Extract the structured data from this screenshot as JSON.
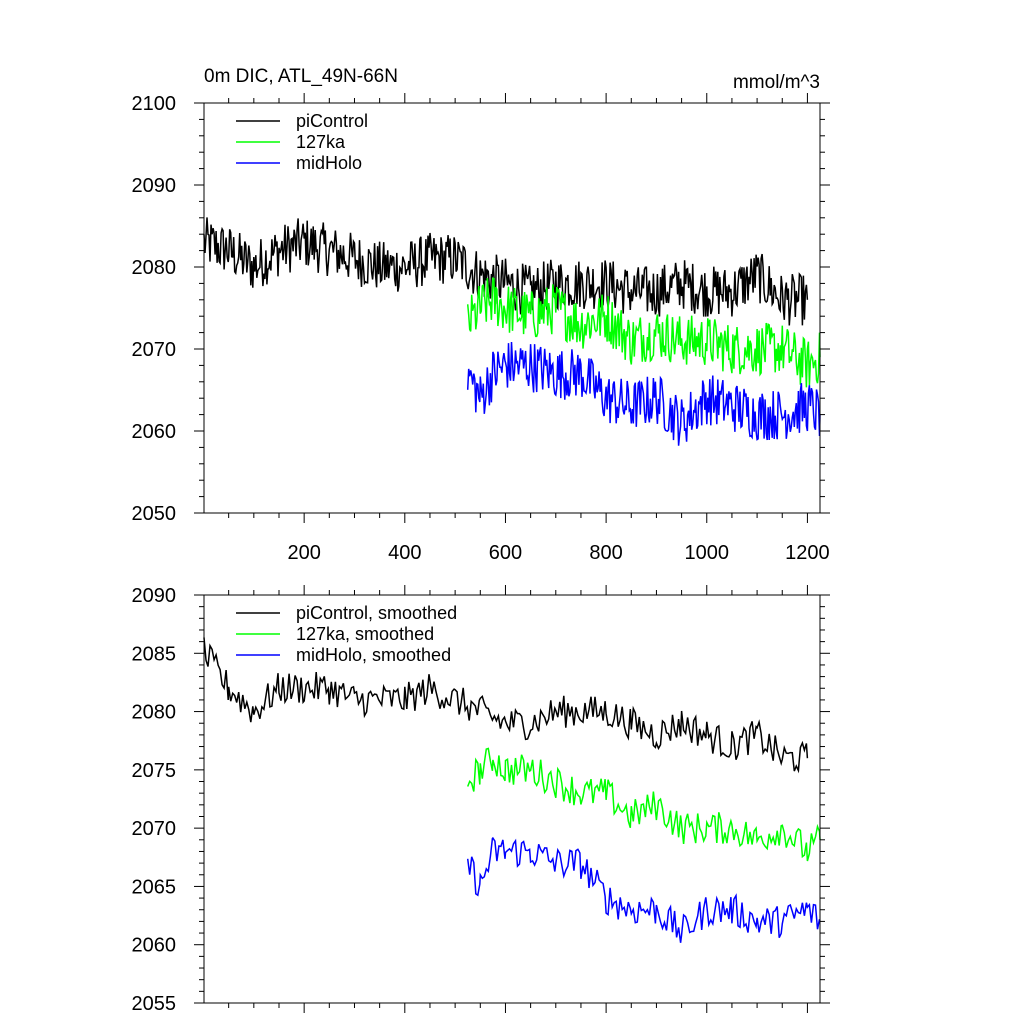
{
  "header": {
    "title": "0m DIC, ATL_49N-66N",
    "units": "mmol/m^3"
  },
  "colors": {
    "piControl": "#000000",
    "127ka": "#00ff00",
    "midHolo": "#0000ff"
  },
  "chart_data": [
    {
      "type": "line",
      "title": "0m DIC, ATL_49N-66N",
      "units_label": "mmol/m^3",
      "xlim": [
        1,
        1225
      ],
      "ylim": [
        2050,
        2100
      ],
      "x_ticks": [
        200,
        400,
        600,
        800,
        1000,
        1200
      ],
      "x_tick_labels": [
        "200",
        "400",
        "600",
        "800",
        "1000",
        "1200"
      ],
      "y_ticks": [
        2050,
        2060,
        2070,
        2080,
        2090,
        2100
      ],
      "y_tick_labels": [
        "2050",
        "2060",
        "2070",
        "2080",
        "2090",
        "2100"
      ],
      "legend_placement": "top-left",
      "series": [
        {
          "name": "piControl",
          "color": "#000000",
          "x": [
            1,
            50,
            100,
            150,
            200,
            250,
            300,
            350,
            400,
            450,
            500,
            550,
            600,
            650,
            700,
            750,
            800,
            850,
            900,
            950,
            1000,
            1050,
            1100,
            1150,
            1200
          ],
          "y": [
            2083,
            2082,
            2080,
            2082,
            2083,
            2082,
            2081,
            2080,
            2080,
            2081,
            2081,
            2079,
            2078,
            2077,
            2078,
            2078,
            2078,
            2077,
            2077,
            2078,
            2077,
            2077,
            2079,
            2076,
            2076
          ]
        },
        {
          "name": "127ka",
          "color": "#00ff00",
          "x": [
            525,
            550,
            575,
            600,
            650,
            700,
            750,
            800,
            850,
            900,
            950,
            1000,
            1050,
            1100,
            1150,
            1200,
            1225
          ],
          "y": [
            2073,
            2075,
            2076,
            2075,
            2074,
            2075,
            2073,
            2074,
            2071,
            2072,
            2071,
            2071,
            2070,
            2070,
            2070,
            2068,
            2069
          ]
        },
        {
          "name": "midHolo",
          "color": "#0000ff",
          "x": [
            525,
            550,
            575,
            600,
            650,
            700,
            750,
            800,
            850,
            900,
            950,
            1000,
            1050,
            1100,
            1150,
            1200,
            1225
          ],
          "y": [
            2067,
            2064,
            2067,
            2068,
            2068,
            2067,
            2067,
            2064,
            2063,
            2064,
            2061,
            2064,
            2063,
            2062,
            2062,
            2063,
            2062
          ]
        }
      ]
    },
    {
      "type": "line",
      "xlim": [
        1,
        1225
      ],
      "ylim": [
        2055,
        2090
      ],
      "x_ticks": [
        200,
        400,
        600,
        800,
        1000,
        1200
      ],
      "y_ticks": [
        2055,
        2060,
        2065,
        2070,
        2075,
        2080,
        2085,
        2090
      ],
      "y_tick_labels": [
        "2055",
        "2060",
        "2065",
        "2070",
        "2075",
        "2080",
        "2085",
        "2090"
      ],
      "legend_placement": "top-left",
      "series": [
        {
          "name": "piControl, smoothed",
          "color": "#000000",
          "x": [
            1,
            50,
            100,
            150,
            200,
            250,
            300,
            350,
            400,
            450,
            500,
            550,
            600,
            650,
            700,
            750,
            800,
            850,
            900,
            950,
            1000,
            1050,
            1100,
            1150,
            1200
          ],
          "y": [
            2085,
            2082,
            2080,
            2082,
            2082,
            2082,
            2081,
            2081,
            2081,
            2082,
            2081,
            2080,
            2079,
            2079,
            2080,
            2080,
            2080,
            2079,
            2078,
            2079,
            2078,
            2077,
            2078,
            2076,
            2076
          ]
        },
        {
          "name": "127ka, smoothed",
          "color": "#00ff00",
          "x": [
            525,
            550,
            575,
            600,
            650,
            700,
            750,
            800,
            850,
            900,
            950,
            1000,
            1050,
            1100,
            1150,
            1200,
            1225
          ],
          "y": [
            2074,
            2075,
            2076,
            2075,
            2075,
            2074,
            2073,
            2073,
            2071,
            2072,
            2070,
            2070,
            2070,
            2069,
            2070,
            2068,
            2069
          ]
        },
        {
          "name": "midHolo, smoothed",
          "color": "#0000ff",
          "x": [
            525,
            550,
            575,
            600,
            650,
            700,
            750,
            800,
            850,
            900,
            950,
            1000,
            1050,
            1100,
            1150,
            1200,
            1225
          ],
          "y": [
            2067,
            2065,
            2068,
            2068,
            2068,
            2067,
            2067,
            2064,
            2063,
            2063,
            2061,
            2063,
            2063,
            2062,
            2062,
            2063,
            2062
          ]
        }
      ]
    }
  ]
}
